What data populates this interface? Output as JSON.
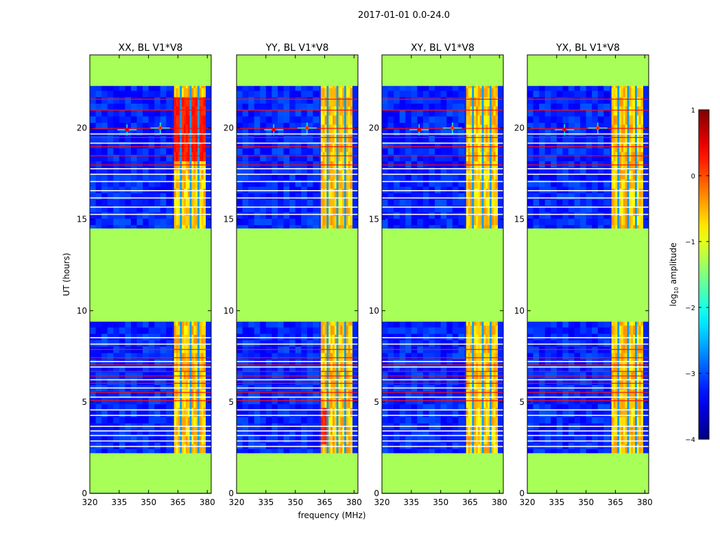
{
  "chart_data": {
    "type": "heatmap",
    "suptitle": "2017-01-01 0.0-24.0",
    "xlabel": "frequency (MHz)",
    "ylabel": "UT (hours)",
    "xlim": [
      320,
      382
    ],
    "ylim": [
      0,
      24
    ],
    "xticks": [
      320,
      335,
      350,
      365,
      380
    ],
    "xtick_labels": [
      "320",
      "335",
      "350",
      "365",
      "380"
    ],
    "yticks": [
      0,
      5,
      10,
      15,
      20
    ],
    "ytick_labels": [
      "0",
      "5",
      "10",
      "15",
      "20"
    ],
    "panels": [
      {
        "title": "XX, BL V1*V8",
        "polarization": "XX"
      },
      {
        "title": "YY, BL V1*V8",
        "polarization": "YY"
      },
      {
        "title": "XY, BL V1*V8",
        "polarization": "XY"
      },
      {
        "title": "YX, BL V1*V8",
        "polarization": "YX"
      }
    ],
    "colorbar": {
      "label": "log10 amplitude",
      "label_prefix": "log",
      "label_sub": "10",
      "label_suffix": " amplitude",
      "range": [
        -4,
        1
      ],
      "ticks": [
        1,
        0,
        -1,
        -2,
        -3,
        -4
      ],
      "tick_labels": [
        "1",
        "0",
        "−1",
        "−2",
        "−3",
        "−4"
      ]
    },
    "flagged_time_ranges_hours": [
      [
        0.0,
        2.2
      ],
      [
        9.4,
        14.5
      ],
      [
        22.3,
        24.0
      ]
    ],
    "flagged_value": -1.3,
    "background_value": -3.2,
    "rfi_band_mhz": [
      363,
      378
    ]
  }
}
